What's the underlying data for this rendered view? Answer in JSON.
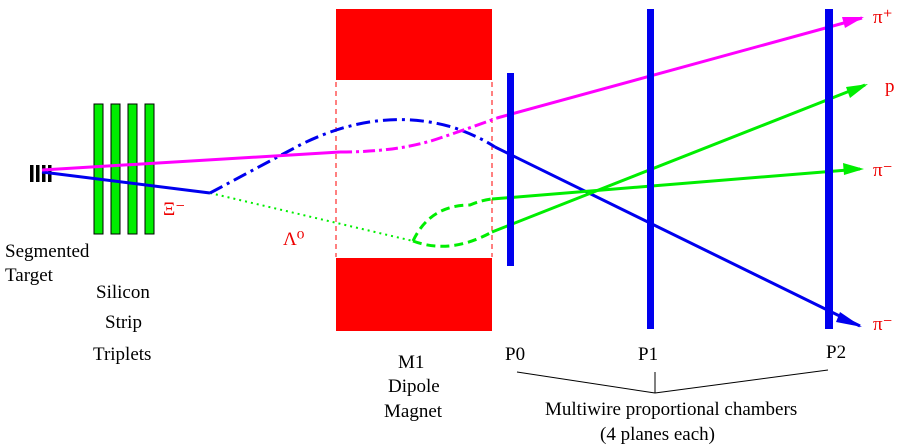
{
  "colors": {
    "magnet": "#ff0000",
    "silicon": "#00ee00",
    "chamber": "#0000ee",
    "track_pi_plus": "#ff00ff",
    "track_proton": "#00ee00",
    "track_xi": "#0000ee",
    "track_lambda": "#00ee00",
    "label_red": "#ee0000",
    "text": "#000000"
  },
  "labels": {
    "target": [
      "Segmented",
      "Target"
    ],
    "silicon": [
      "Silicon",
      "Strip",
      "Triplets"
    ],
    "magnet": [
      "M1",
      "Dipole",
      "Magnet"
    ],
    "chambers": [
      "P0",
      "P1",
      "P2"
    ],
    "chamber_caption": [
      "Multiwire proportional chambers",
      "(4 planes each)"
    ]
  },
  "particles": {
    "xi": "Ξ⁻",
    "lambda": "Λ⁰",
    "pi_plus": "π⁺",
    "proton": "p",
    "pi_minus_upper": "π⁻",
    "pi_minus_lower": "π⁻"
  }
}
